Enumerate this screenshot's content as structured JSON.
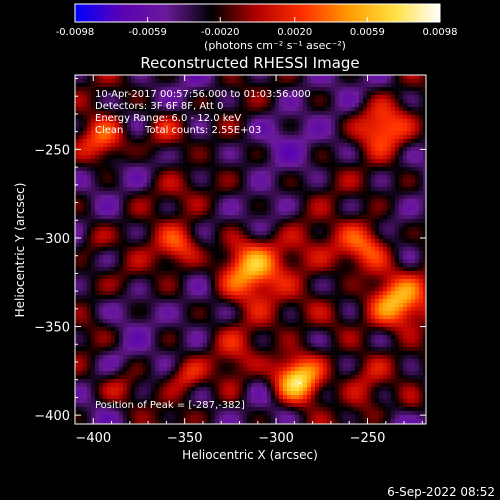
{
  "chart_data": {
    "type": "heatmap",
    "title": "Reconstructed RHESSI Image",
    "xlabel": "Heliocentric X (arcsec)",
    "ylabel": "Heliocentric Y (arcsec)",
    "xlim": [
      -410,
      -218
    ],
    "ylim": [
      -405,
      -208
    ],
    "xticks": [
      -400,
      -350,
      -300,
      -250
    ],
    "yticks": [
      -250,
      -300,
      -350,
      -400
    ],
    "colorbar": {
      "min": -0.0098,
      "max": 0.0098,
      "ticks": [
        "-0.0098",
        "-0.0059",
        "-0.0020",
        "0.0020",
        "0.0059",
        "0.0098"
      ],
      "tick_values": [
        -0.0098,
        -0.0059,
        -0.002,
        0.002,
        0.0059,
        0.0098
      ],
      "unit_label": "(photons cm⁻² s⁻¹ asec⁻²)",
      "colors": [
        "#0000ff",
        "#5a00b4",
        "#6a1a9a",
        "#000000",
        "#b40000",
        "#ff3000",
        "#ff9a00",
        "#ffe040",
        "#ffffff"
      ]
    },
    "peak": {
      "x": -287,
      "y": -382
    },
    "sources": [
      {
        "x": -288,
        "y": -380,
        "amplitude": 0.0095,
        "radius": 14
      },
      {
        "x": -312,
        "y": -318,
        "amplitude": 0.0072,
        "radius": 18
      },
      {
        "x": -236,
        "y": -335,
        "amplitude": 0.0068,
        "radius": 16
      },
      {
        "x": -250,
        "y": -305,
        "amplitude": 0.005,
        "radius": 14
      },
      {
        "x": -353,
        "y": -305,
        "amplitude": 0.0042,
        "radius": 12
      },
      {
        "x": -242,
        "y": -238,
        "amplitude": 0.0048,
        "radius": 14
      },
      {
        "x": -395,
        "y": -245,
        "amplitude": 0.0046,
        "radius": 14
      },
      {
        "x": -362,
        "y": -240,
        "amplitude": 0.003,
        "radius": 12
      },
      {
        "x": -385,
        "y": -385,
        "amplitude": 0.0036,
        "radius": 12
      },
      {
        "x": -348,
        "y": -378,
        "amplitude": 0.0034,
        "radius": 10
      },
      {
        "x": -225,
        "y": -395,
        "amplitude": 0.003,
        "radius": 10
      },
      {
        "x": -400,
        "y": -300,
        "amplitude": 0.0028,
        "radius": 10
      }
    ]
  },
  "annotations": {
    "time_range": "10-Apr-2017 00:57:56.000 to 01:03:56.000",
    "detectors": "Detectors: 3F 6F 8F, Att 0",
    "energy_range": "Energy Range: 6.0 - 12.0 keV",
    "method": "Clean",
    "total_counts": "Total counts: 2.55E+03",
    "peak_position": "Position of Peak = [-287,-382]"
  },
  "footer": {
    "date": "6-Sep-2022 08:52"
  }
}
